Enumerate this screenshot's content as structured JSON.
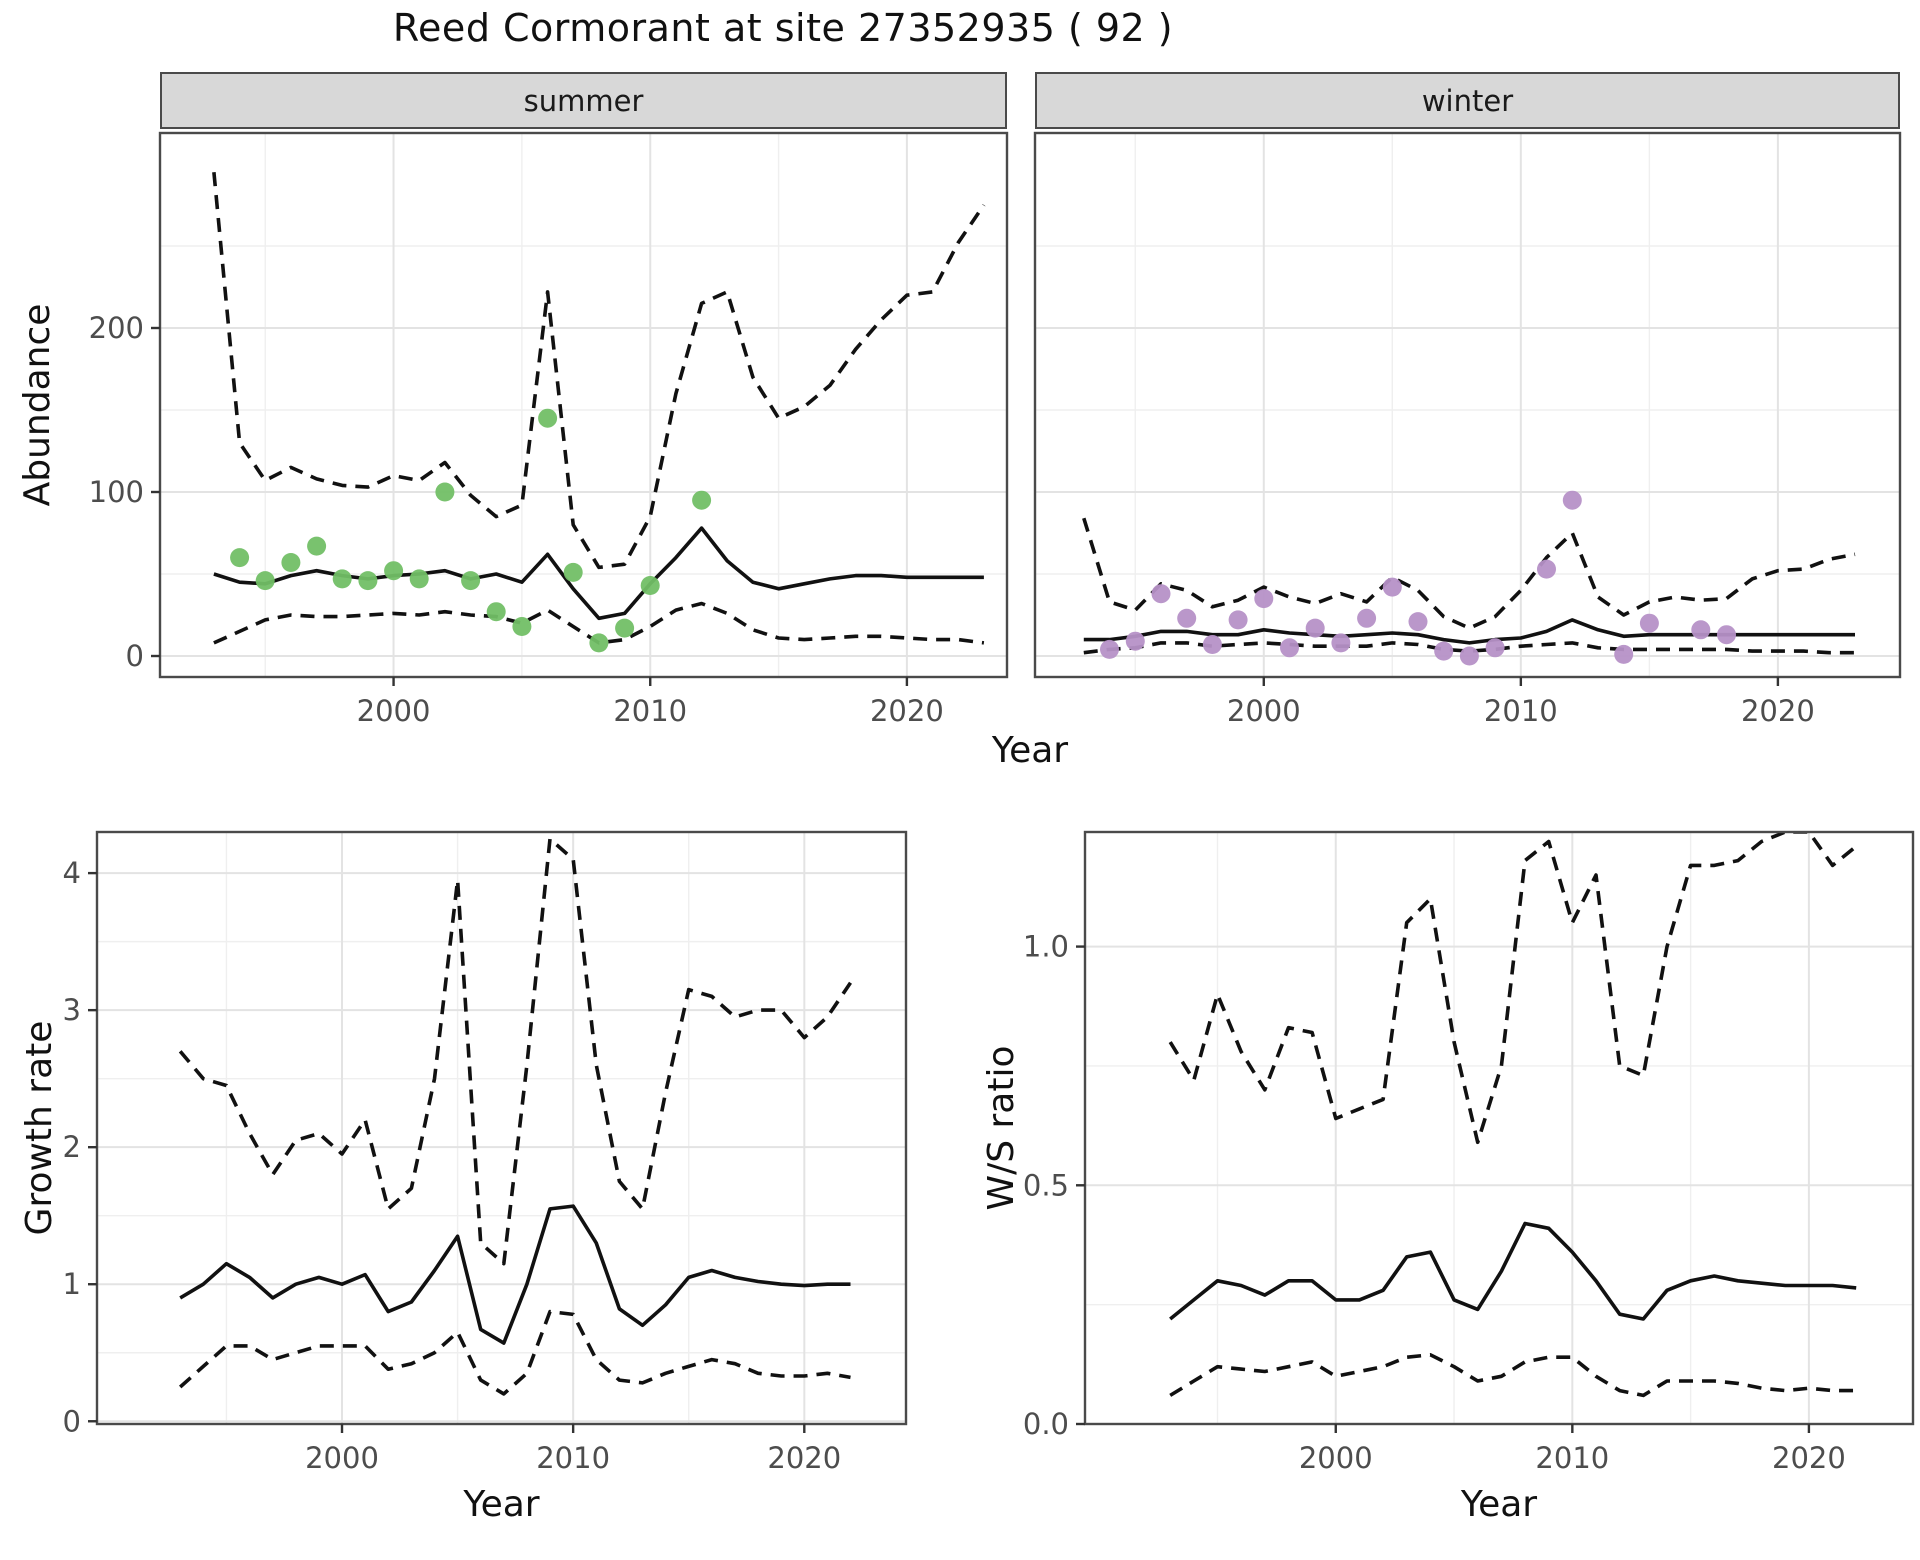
{
  "title": "Reed Cormorant at site 27352935 ( 92 )",
  "colors": {
    "summer_points": "#72bf66",
    "winter_points": "#b691c7",
    "line": "#111111",
    "strip_background": "#d8d8d8",
    "panel_border": "#4a4a4a",
    "grid_major": "#e3e3e3",
    "grid_minor": "#efefef",
    "tick_text": "#4d4d4d"
  },
  "chart_data": [
    {
      "id": "abundance_summer",
      "type": "line",
      "facet_label": "summer",
      "ylabel": "Abundance",
      "xlabel": "Year",
      "xlim": [
        1990.9,
        2023.9
      ],
      "ylim": [
        -12.8,
        318.9
      ],
      "xticks": [
        2000,
        2010,
        2020
      ],
      "xtick_labels": [
        "2000",
        "2010",
        "2020"
      ],
      "yticks": [
        0,
        100,
        200
      ],
      "ytick_labels": [
        "0",
        "100",
        "200"
      ],
      "xminor": [
        1995,
        2005,
        2015
      ],
      "yminor": [
        50,
        150,
        250
      ],
      "show_y_labels": true,
      "grid": true,
      "legend": "none",
      "series": [
        {
          "name": "median",
          "style": "solid",
          "x_start": 1993,
          "y": [
            50,
            45,
            44,
            49,
            52,
            49,
            47,
            49,
            50,
            52,
            47,
            50,
            45,
            62,
            41,
            23,
            26,
            44,
            60,
            78,
            58,
            45,
            41,
            44,
            47,
            49,
            49,
            48,
            48,
            48,
            48
          ]
        },
        {
          "name": "upper_ci",
          "style": "dashed",
          "x_start": 1993,
          "y": [
            295,
            130,
            107,
            115,
            108,
            104,
            103,
            110,
            107,
            118,
            98,
            85,
            92,
            222,
            80,
            54,
            56,
            85,
            160,
            215,
            222,
            170,
            145,
            152,
            165,
            187,
            205,
            220,
            222,
            252,
            275
          ]
        },
        {
          "name": "lower_ci",
          "style": "dashed",
          "x_start": 1993,
          "y": [
            8,
            15,
            22,
            25,
            24,
            24,
            25,
            26,
            25,
            27,
            25,
            24,
            20,
            28,
            18,
            8,
            10,
            18,
            28,
            32,
            26,
            16,
            11,
            10,
            11,
            12,
            12,
            11,
            10,
            10,
            8
          ]
        }
      ],
      "points": {
        "name": "observed_counts_summer",
        "color": "#72bf66",
        "x": [
          1994,
          1995,
          1996,
          1997,
          1998,
          1999,
          2000,
          2001,
          2002,
          2003,
          2004,
          2005,
          2006,
          2007,
          2008,
          2009,
          2010,
          2012
        ],
        "y": [
          60,
          46,
          57,
          67,
          47,
          46,
          52,
          47,
          100,
          46,
          27,
          18,
          145,
          51,
          8,
          17,
          43,
          95
        ]
      }
    },
    {
      "id": "abundance_winter",
      "type": "line",
      "facet_label": "winter",
      "ylabel": "",
      "xlabel": "",
      "xlim": [
        1991.1,
        2024.75
      ],
      "ylim": [
        -12.8,
        318.9
      ],
      "xticks": [
        2000,
        2010,
        2020
      ],
      "xtick_labels": [
        "2000",
        "2010",
        "2020"
      ],
      "yticks": [
        0,
        100,
        200
      ],
      "ytick_labels": [
        "0",
        "100",
        "200"
      ],
      "xminor": [
        1995,
        2005,
        2015
      ],
      "yminor": [
        50,
        150,
        250
      ],
      "show_y_labels": false,
      "grid": true,
      "legend": "none",
      "series": [
        {
          "name": "median",
          "style": "solid",
          "x_start": 1993,
          "y": [
            10,
            10,
            12,
            15,
            15,
            13,
            13,
            16,
            14,
            13,
            12,
            13,
            14,
            13,
            10,
            8,
            10,
            11,
            15,
            22,
            16,
            12,
            13,
            13,
            13,
            13,
            13,
            13,
            13,
            13,
            13
          ]
        },
        {
          "name": "upper_ci",
          "style": "dashed",
          "x_start": 1993,
          "y": [
            84,
            33,
            28,
            44,
            40,
            30,
            34,
            42,
            36,
            32,
            38,
            33,
            48,
            40,
            24,
            17,
            24,
            40,
            60,
            75,
            36,
            25,
            33,
            36,
            34,
            35,
            47,
            52,
            53,
            59,
            62
          ]
        },
        {
          "name": "lower_ci",
          "style": "dashed",
          "x_start": 1993,
          "y": [
            2,
            4,
            5,
            8,
            8,
            6,
            7,
            8,
            7,
            6,
            6,
            6,
            8,
            7,
            4,
            3,
            4,
            6,
            7,
            8,
            5,
            4,
            4,
            4,
            4,
            4,
            3,
            3,
            3,
            2,
            2
          ]
        }
      ],
      "points": {
        "name": "observed_counts_winter",
        "color": "#b691c7",
        "x": [
          1994,
          1995,
          1996,
          1997,
          1998,
          1999,
          2000,
          2001,
          2002,
          2003,
          2004,
          2005,
          2006,
          2007,
          2008,
          2009,
          2011,
          2012,
          2014,
          2015,
          2017,
          2018
        ],
        "y": [
          4,
          9,
          38,
          23,
          7,
          22,
          35,
          5,
          17,
          8,
          23,
          42,
          21,
          3,
          0,
          5,
          53,
          95,
          1,
          20,
          16,
          13
        ]
      }
    },
    {
      "id": "growth_rate",
      "type": "line",
      "facet_label": "",
      "ylabel": "Growth rate",
      "xlabel": "Year",
      "xlim": [
        1989.4,
        2024.4
      ],
      "ylim": [
        -0.02,
        4.3
      ],
      "xticks": [
        2000,
        2010,
        2020
      ],
      "xtick_labels": [
        "2000",
        "2010",
        "2020"
      ],
      "yticks": [
        0,
        1,
        2,
        3,
        4
      ],
      "ytick_labels": [
        "0",
        "1",
        "2",
        "3",
        "4"
      ],
      "xminor": [
        1995,
        2005,
        2015
      ],
      "yminor": [
        0.5,
        1.5,
        2.5,
        3.5
      ],
      "show_y_labels": true,
      "grid": true,
      "legend": "none",
      "series": [
        {
          "name": "median",
          "style": "solid",
          "x_start": 1993,
          "y": [
            0.9,
            1.0,
            1.15,
            1.05,
            0.9,
            1.0,
            1.05,
            1.0,
            1.07,
            0.8,
            0.87,
            1.1,
            1.35,
            0.67,
            0.57,
            1.0,
            1.55,
            1.57,
            1.3,
            0.82,
            0.7,
            0.85,
            1.05,
            1.1,
            1.05,
            1.02,
            1.0,
            0.99,
            1.0,
            1.0
          ]
        },
        {
          "name": "upper_ci",
          "style": "dashed",
          "x_start": 1993,
          "y": [
            2.7,
            2.5,
            2.45,
            2.1,
            1.8,
            2.05,
            2.1,
            1.95,
            2.2,
            1.55,
            1.7,
            2.5,
            3.95,
            1.3,
            1.15,
            2.6,
            4.25,
            4.1,
            2.6,
            1.75,
            1.55,
            2.4,
            3.15,
            3.1,
            2.95,
            3.0,
            3.0,
            2.8,
            2.95,
            3.2
          ]
        },
        {
          "name": "lower_ci",
          "style": "dashed",
          "x_start": 1993,
          "y": [
            0.25,
            0.4,
            0.55,
            0.55,
            0.45,
            0.5,
            0.55,
            0.55,
            0.55,
            0.38,
            0.42,
            0.5,
            0.65,
            0.3,
            0.2,
            0.35,
            0.8,
            0.78,
            0.45,
            0.3,
            0.28,
            0.35,
            0.4,
            0.45,
            0.42,
            0.35,
            0.33,
            0.33,
            0.35,
            0.32
          ]
        }
      ],
      "points": null
    },
    {
      "id": "ws_ratio",
      "type": "line",
      "facet_label": "",
      "ylabel": "W/S ratio",
      "xlabel": "Year",
      "xlim": [
        1989.4,
        2024.4
      ],
      "ylim": [
        0,
        1.24
      ],
      "xticks": [
        2000,
        2010,
        2020
      ],
      "xtick_labels": [
        "2000",
        "2010",
        "2020"
      ],
      "yticks": [
        0,
        0.5,
        1.0
      ],
      "ytick_labels": [
        "0.0",
        "0.5",
        "1.0"
      ],
      "xminor": [
        1995,
        2005,
        2015
      ],
      "yminor": [
        0.25,
        0.75
      ],
      "show_y_labels": true,
      "grid": true,
      "legend": "none",
      "series": [
        {
          "name": "median",
          "style": "solid",
          "x_start": 1993,
          "y": [
            0.22,
            0.26,
            0.3,
            0.29,
            0.27,
            0.3,
            0.3,
            0.26,
            0.26,
            0.28,
            0.35,
            0.36,
            0.26,
            0.24,
            0.32,
            0.42,
            0.41,
            0.36,
            0.3,
            0.23,
            0.22,
            0.28,
            0.3,
            0.31,
            0.3,
            0.295,
            0.29,
            0.29,
            0.29,
            0.285
          ]
        },
        {
          "name": "upper_ci",
          "style": "dashed",
          "x_start": 1993,
          "y": [
            0.8,
            0.72,
            0.9,
            0.78,
            0.7,
            0.83,
            0.82,
            0.64,
            0.66,
            0.68,
            1.05,
            1.1,
            0.8,
            0.59,
            0.75,
            1.18,
            1.22,
            1.05,
            1.15,
            0.75,
            0.73,
            1.0,
            1.17,
            1.17,
            1.18,
            1.22,
            1.24,
            1.24,
            1.17,
            1.21
          ]
        },
        {
          "name": "lower_ci",
          "style": "dashed",
          "x_start": 1993,
          "y": [
            0.06,
            0.09,
            0.12,
            0.115,
            0.11,
            0.12,
            0.13,
            0.1,
            0.11,
            0.12,
            0.14,
            0.145,
            0.12,
            0.09,
            0.1,
            0.13,
            0.14,
            0.14,
            0.1,
            0.07,
            0.06,
            0.09,
            0.09,
            0.09,
            0.085,
            0.075,
            0.07,
            0.075,
            0.07,
            0.07
          ]
        }
      ],
      "points": null
    }
  ]
}
